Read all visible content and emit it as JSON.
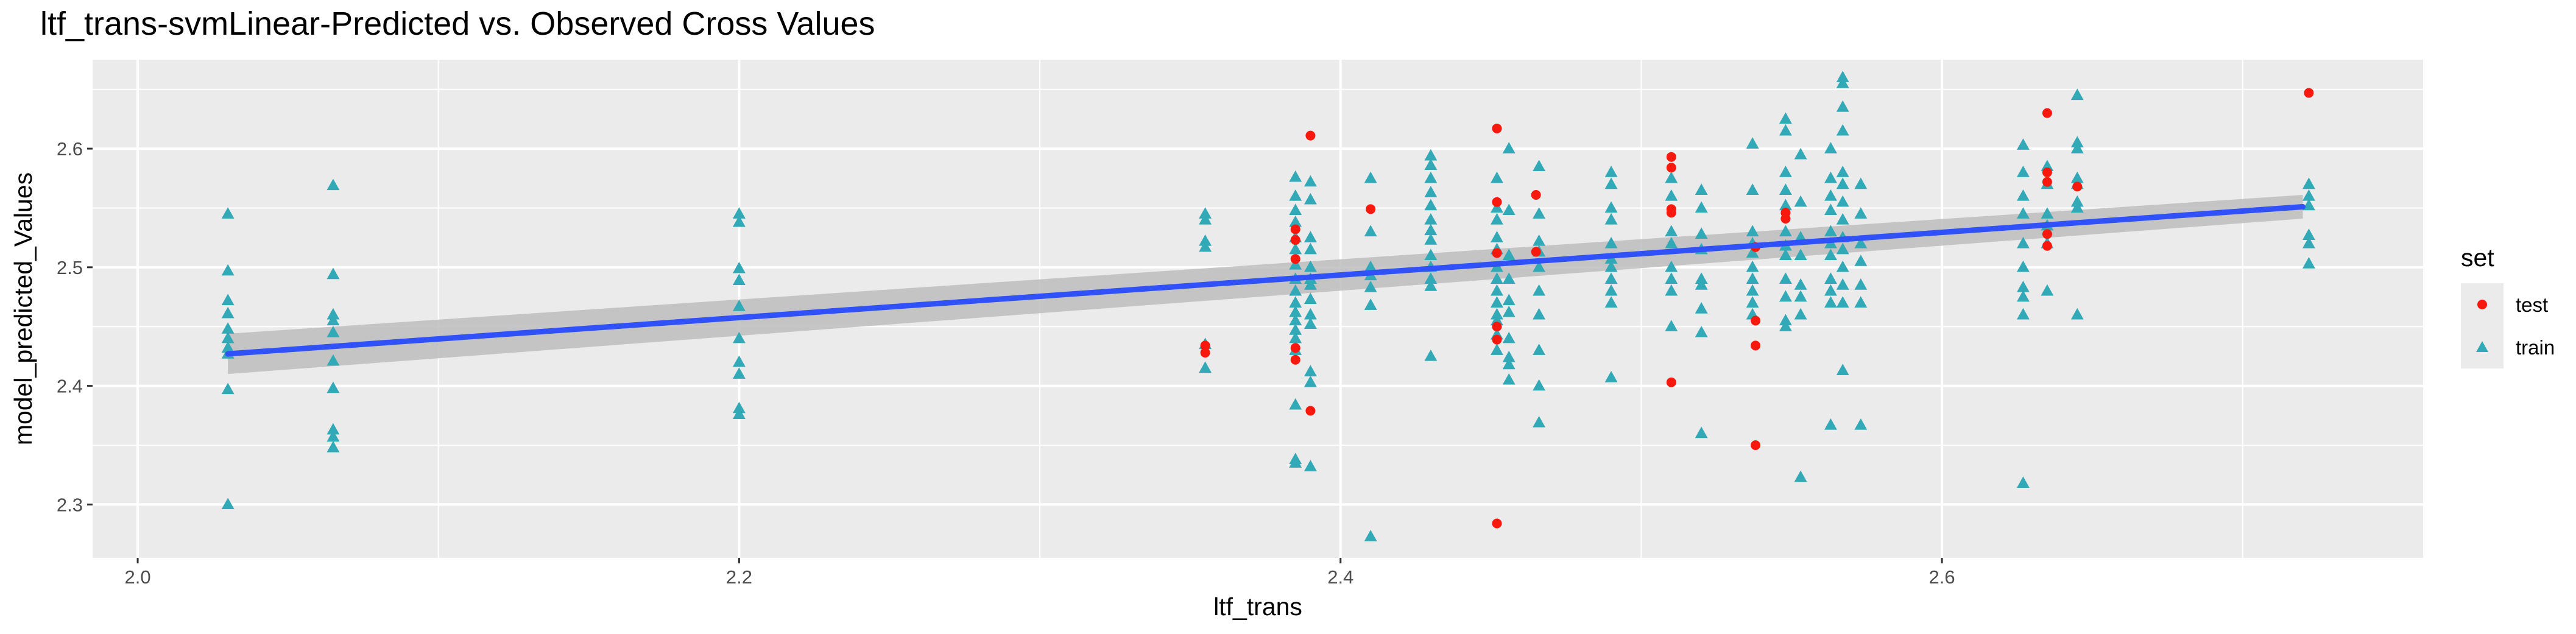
{
  "chart_data": {
    "type": "scatter",
    "title": "ltf_trans-svmLinear-Predicted vs. Observed Cross Values",
    "xlabel": "ltf_trans",
    "ylabel": "model_predicted_Values",
    "xlim": [
      1.985,
      2.76
    ],
    "ylim": [
      2.255,
      2.675
    ],
    "x_ticks": [
      2.0,
      2.2,
      2.4,
      2.6
    ],
    "x_tick_labels": [
      "2.0",
      "2.2",
      "2.4",
      "2.6"
    ],
    "y_ticks": [
      2.3,
      2.4,
      2.5,
      2.6
    ],
    "y_tick_labels": [
      "2.3",
      "2.4",
      "2.5",
      "2.6"
    ],
    "grid": true,
    "legend": {
      "title": "set",
      "position": "right",
      "entries": [
        {
          "label": "test",
          "shape": "circle",
          "color": "#f8180d"
        },
        {
          "label": "train",
          "shape": "triangle",
          "color": "#32a9b7"
        }
      ]
    },
    "fit_line": {
      "method": "linear",
      "color": "#3050f8",
      "band_color": "#bdbdbd",
      "x": [
        2.03,
        2.72
      ],
      "y": [
        2.427,
        2.551
      ],
      "band_lower": [
        2.41,
        2.541
      ],
      "band_upper": [
        2.444,
        2.561
      ]
    },
    "series": [
      {
        "name": "test",
        "marker": "circle",
        "color": "#f8180d",
        "points": [
          [
            2.355,
            2.434
          ],
          [
            2.355,
            2.428
          ],
          [
            2.385,
            2.532
          ],
          [
            2.385,
            2.523
          ],
          [
            2.385,
            2.507
          ],
          [
            2.385,
            2.432
          ],
          [
            2.385,
            2.422
          ],
          [
            2.39,
            2.611
          ],
          [
            2.39,
            2.379
          ],
          [
            2.41,
            2.549
          ],
          [
            2.452,
            2.617
          ],
          [
            2.452,
            2.555
          ],
          [
            2.452,
            2.512
          ],
          [
            2.452,
            2.45
          ],
          [
            2.452,
            2.439
          ],
          [
            2.452,
            2.284
          ],
          [
            2.465,
            2.561
          ],
          [
            2.465,
            2.513
          ],
          [
            2.51,
            2.593
          ],
          [
            2.51,
            2.584
          ],
          [
            2.51,
            2.549
          ],
          [
            2.51,
            2.546
          ],
          [
            2.51,
            2.403
          ],
          [
            2.538,
            2.517
          ],
          [
            2.538,
            2.455
          ],
          [
            2.538,
            2.434
          ],
          [
            2.538,
            2.35
          ],
          [
            2.548,
            2.546
          ],
          [
            2.548,
            2.541
          ],
          [
            2.635,
            2.63
          ],
          [
            2.635,
            2.58
          ],
          [
            2.635,
            2.572
          ],
          [
            2.635,
            2.528
          ],
          [
            2.635,
            2.518
          ],
          [
            2.645,
            2.568
          ],
          [
            2.722,
            2.647
          ]
        ]
      },
      {
        "name": "train",
        "marker": "triangle",
        "color": "#32a9b7",
        "points": [
          [
            2.03,
            2.545
          ],
          [
            2.03,
            2.497
          ],
          [
            2.03,
            2.472
          ],
          [
            2.03,
            2.461
          ],
          [
            2.03,
            2.448
          ],
          [
            2.03,
            2.44
          ],
          [
            2.03,
            2.432
          ],
          [
            2.03,
            2.427
          ],
          [
            2.03,
            2.397
          ],
          [
            2.03,
            2.3
          ],
          [
            2.065,
            2.569
          ],
          [
            2.065,
            2.494
          ],
          [
            2.065,
            2.46
          ],
          [
            2.065,
            2.455
          ],
          [
            2.065,
            2.445
          ],
          [
            2.065,
            2.421
          ],
          [
            2.065,
            2.398
          ],
          [
            2.065,
            2.363
          ],
          [
            2.065,
            2.357
          ],
          [
            2.065,
            2.348
          ],
          [
            2.2,
            2.545
          ],
          [
            2.2,
            2.538
          ],
          [
            2.2,
            2.499
          ],
          [
            2.2,
            2.489
          ],
          [
            2.2,
            2.467
          ],
          [
            2.2,
            2.44
          ],
          [
            2.2,
            2.42
          ],
          [
            2.2,
            2.41
          ],
          [
            2.2,
            2.381
          ],
          [
            2.2,
            2.376
          ],
          [
            2.355,
            2.545
          ],
          [
            2.355,
            2.54
          ],
          [
            2.355,
            2.522
          ],
          [
            2.355,
            2.517
          ],
          [
            2.355,
            2.435
          ],
          [
            2.355,
            2.415
          ],
          [
            2.385,
            2.576
          ],
          [
            2.385,
            2.56
          ],
          [
            2.385,
            2.548
          ],
          [
            2.385,
            2.538
          ],
          [
            2.385,
            2.525
          ],
          [
            2.385,
            2.515
          ],
          [
            2.385,
            2.502
          ],
          [
            2.385,
            2.49
          ],
          [
            2.385,
            2.48
          ],
          [
            2.385,
            2.47
          ],
          [
            2.385,
            2.462
          ],
          [
            2.385,
            2.455
          ],
          [
            2.385,
            2.447
          ],
          [
            2.385,
            2.44
          ],
          [
            2.385,
            2.43
          ],
          [
            2.385,
            2.384
          ],
          [
            2.385,
            2.338
          ],
          [
            2.385,
            2.335
          ],
          [
            2.39,
            2.572
          ],
          [
            2.39,
            2.557
          ],
          [
            2.39,
            2.525
          ],
          [
            2.39,
            2.515
          ],
          [
            2.39,
            2.5
          ],
          [
            2.39,
            2.49
          ],
          [
            2.39,
            2.485
          ],
          [
            2.39,
            2.473
          ],
          [
            2.39,
            2.46
          ],
          [
            2.39,
            2.452
          ],
          [
            2.39,
            2.412
          ],
          [
            2.39,
            2.403
          ],
          [
            2.39,
            2.332
          ],
          [
            2.41,
            2.575
          ],
          [
            2.41,
            2.53
          ],
          [
            2.41,
            2.5
          ],
          [
            2.41,
            2.493
          ],
          [
            2.41,
            2.483
          ],
          [
            2.41,
            2.468
          ],
          [
            2.41,
            2.273
          ],
          [
            2.43,
            2.594
          ],
          [
            2.43,
            2.586
          ],
          [
            2.43,
            2.575
          ],
          [
            2.43,
            2.563
          ],
          [
            2.43,
            2.552
          ],
          [
            2.43,
            2.54
          ],
          [
            2.43,
            2.531
          ],
          [
            2.43,
            2.523
          ],
          [
            2.43,
            2.51
          ],
          [
            2.43,
            2.5
          ],
          [
            2.43,
            2.49
          ],
          [
            2.43,
            2.484
          ],
          [
            2.43,
            2.425
          ],
          [
            2.452,
            2.575
          ],
          [
            2.452,
            2.55
          ],
          [
            2.452,
            2.54
          ],
          [
            2.452,
            2.525
          ],
          [
            2.452,
            2.515
          ],
          [
            2.452,
            2.5
          ],
          [
            2.452,
            2.49
          ],
          [
            2.452,
            2.48
          ],
          [
            2.452,
            2.47
          ],
          [
            2.452,
            2.46
          ],
          [
            2.452,
            2.455
          ],
          [
            2.452,
            2.443
          ],
          [
            2.452,
            2.43
          ],
          [
            2.456,
            2.6
          ],
          [
            2.456,
            2.548
          ],
          [
            2.456,
            2.51
          ],
          [
            2.456,
            2.49
          ],
          [
            2.456,
            2.472
          ],
          [
            2.456,
            2.462
          ],
          [
            2.456,
            2.44
          ],
          [
            2.456,
            2.424
          ],
          [
            2.456,
            2.418
          ],
          [
            2.456,
            2.405
          ],
          [
            2.466,
            2.585
          ],
          [
            2.466,
            2.545
          ],
          [
            2.466,
            2.522
          ],
          [
            2.466,
            2.513
          ],
          [
            2.466,
            2.5
          ],
          [
            2.466,
            2.48
          ],
          [
            2.466,
            2.46
          ],
          [
            2.466,
            2.43
          ],
          [
            2.466,
            2.4
          ],
          [
            2.466,
            2.369
          ],
          [
            2.49,
            2.58
          ],
          [
            2.49,
            2.57
          ],
          [
            2.49,
            2.55
          ],
          [
            2.49,
            2.54
          ],
          [
            2.49,
            2.52
          ],
          [
            2.49,
            2.507
          ],
          [
            2.49,
            2.5
          ],
          [
            2.49,
            2.49
          ],
          [
            2.49,
            2.48
          ],
          [
            2.49,
            2.47
          ],
          [
            2.49,
            2.407
          ],
          [
            2.51,
            2.575
          ],
          [
            2.51,
            2.56
          ],
          [
            2.51,
            2.53
          ],
          [
            2.51,
            2.52
          ],
          [
            2.51,
            2.5
          ],
          [
            2.51,
            2.49
          ],
          [
            2.51,
            2.48
          ],
          [
            2.51,
            2.45
          ],
          [
            2.52,
            2.565
          ],
          [
            2.52,
            2.55
          ],
          [
            2.52,
            2.528
          ],
          [
            2.52,
            2.515
          ],
          [
            2.52,
            2.49
          ],
          [
            2.52,
            2.485
          ],
          [
            2.52,
            2.465
          ],
          [
            2.52,
            2.445
          ],
          [
            2.52,
            2.36
          ],
          [
            2.537,
            2.604
          ],
          [
            2.537,
            2.565
          ],
          [
            2.537,
            2.53
          ],
          [
            2.537,
            2.52
          ],
          [
            2.537,
            2.512
          ],
          [
            2.537,
            2.5
          ],
          [
            2.537,
            2.49
          ],
          [
            2.537,
            2.48
          ],
          [
            2.537,
            2.47
          ],
          [
            2.537,
            2.46
          ],
          [
            2.548,
            2.625
          ],
          [
            2.548,
            2.615
          ],
          [
            2.548,
            2.58
          ],
          [
            2.548,
            2.565
          ],
          [
            2.548,
            2.552
          ],
          [
            2.548,
            2.53
          ],
          [
            2.548,
            2.518
          ],
          [
            2.548,
            2.51
          ],
          [
            2.548,
            2.49
          ],
          [
            2.548,
            2.475
          ],
          [
            2.548,
            2.455
          ],
          [
            2.548,
            2.45
          ],
          [
            2.553,
            2.595
          ],
          [
            2.553,
            2.555
          ],
          [
            2.553,
            2.525
          ],
          [
            2.553,
            2.51
          ],
          [
            2.553,
            2.485
          ],
          [
            2.553,
            2.475
          ],
          [
            2.553,
            2.46
          ],
          [
            2.553,
            2.323
          ],
          [
            2.563,
            2.6
          ],
          [
            2.563,
            2.575
          ],
          [
            2.563,
            2.56
          ],
          [
            2.563,
            2.548
          ],
          [
            2.563,
            2.53
          ],
          [
            2.563,
            2.52
          ],
          [
            2.563,
            2.51
          ],
          [
            2.563,
            2.49
          ],
          [
            2.563,
            2.48
          ],
          [
            2.563,
            2.47
          ],
          [
            2.563,
            2.367
          ],
          [
            2.567,
            2.66
          ],
          [
            2.567,
            2.655
          ],
          [
            2.567,
            2.635
          ],
          [
            2.567,
            2.615
          ],
          [
            2.567,
            2.58
          ],
          [
            2.567,
            2.57
          ],
          [
            2.567,
            2.555
          ],
          [
            2.567,
            2.54
          ],
          [
            2.567,
            2.525
          ],
          [
            2.567,
            2.515
          ],
          [
            2.567,
            2.5
          ],
          [
            2.567,
            2.485
          ],
          [
            2.567,
            2.47
          ],
          [
            2.567,
            2.413
          ],
          [
            2.573,
            2.57
          ],
          [
            2.573,
            2.545
          ],
          [
            2.573,
            2.52
          ],
          [
            2.573,
            2.505
          ],
          [
            2.573,
            2.485
          ],
          [
            2.573,
            2.47
          ],
          [
            2.573,
            2.367
          ],
          [
            2.627,
            2.603
          ],
          [
            2.627,
            2.58
          ],
          [
            2.627,
            2.56
          ],
          [
            2.627,
            2.545
          ],
          [
            2.627,
            2.52
          ],
          [
            2.627,
            2.5
          ],
          [
            2.627,
            2.483
          ],
          [
            2.627,
            2.475
          ],
          [
            2.627,
            2.46
          ],
          [
            2.627,
            2.318
          ],
          [
            2.635,
            2.585
          ],
          [
            2.635,
            2.57
          ],
          [
            2.635,
            2.545
          ],
          [
            2.635,
            2.535
          ],
          [
            2.635,
            2.52
          ],
          [
            2.635,
            2.48
          ],
          [
            2.645,
            2.645
          ],
          [
            2.645,
            2.605
          ],
          [
            2.645,
            2.6
          ],
          [
            2.645,
            2.575
          ],
          [
            2.645,
            2.57
          ],
          [
            2.645,
            2.555
          ],
          [
            2.645,
            2.55
          ],
          [
            2.645,
            2.46
          ],
          [
            2.722,
            2.57
          ],
          [
            2.722,
            2.56
          ],
          [
            2.722,
            2.552
          ],
          [
            2.722,
            2.527
          ],
          [
            2.722,
            2.52
          ],
          [
            2.722,
            2.503
          ]
        ]
      }
    ]
  }
}
